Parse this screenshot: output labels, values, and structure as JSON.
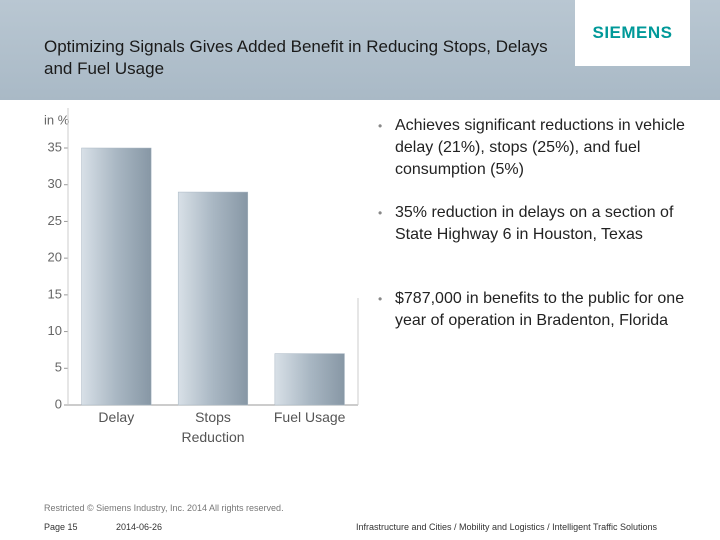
{
  "header": {
    "title": "Optimizing Signals Gives Added Benefit in Reducing Stops, Delays and Fuel Usage",
    "logo": "SIEMENS"
  },
  "chart_data": {
    "type": "bar",
    "y_label": "in %",
    "categories": [
      "Delay",
      "Stops Reduction",
      "Fuel Usage"
    ],
    "values": [
      35,
      29,
      7
    ],
    "color": "#a9b7c3",
    "ylim": [
      0,
      35
    ],
    "yticks": [
      0,
      5,
      10,
      15,
      20,
      25,
      30,
      35
    ],
    "grid": false
  },
  "bullets": [
    "Achieves significant reductions in vehicle delay (21%), stops (25%), and fuel consumption (5%)",
    "35% reduction in delays on a section of State Highway 6 in Houston, Texas",
    "$787,000 in benefits to the public for one year of operation in Bradenton, Florida"
  ],
  "footer": {
    "copyright": "Restricted © Siemens Industry, Inc. 2014 All rights reserved.",
    "page": "Page 15",
    "date": "2014-06-26",
    "path": "Infrastructure and Cities / Mobility and Logistics / Intelligent Traffic Solutions"
  }
}
